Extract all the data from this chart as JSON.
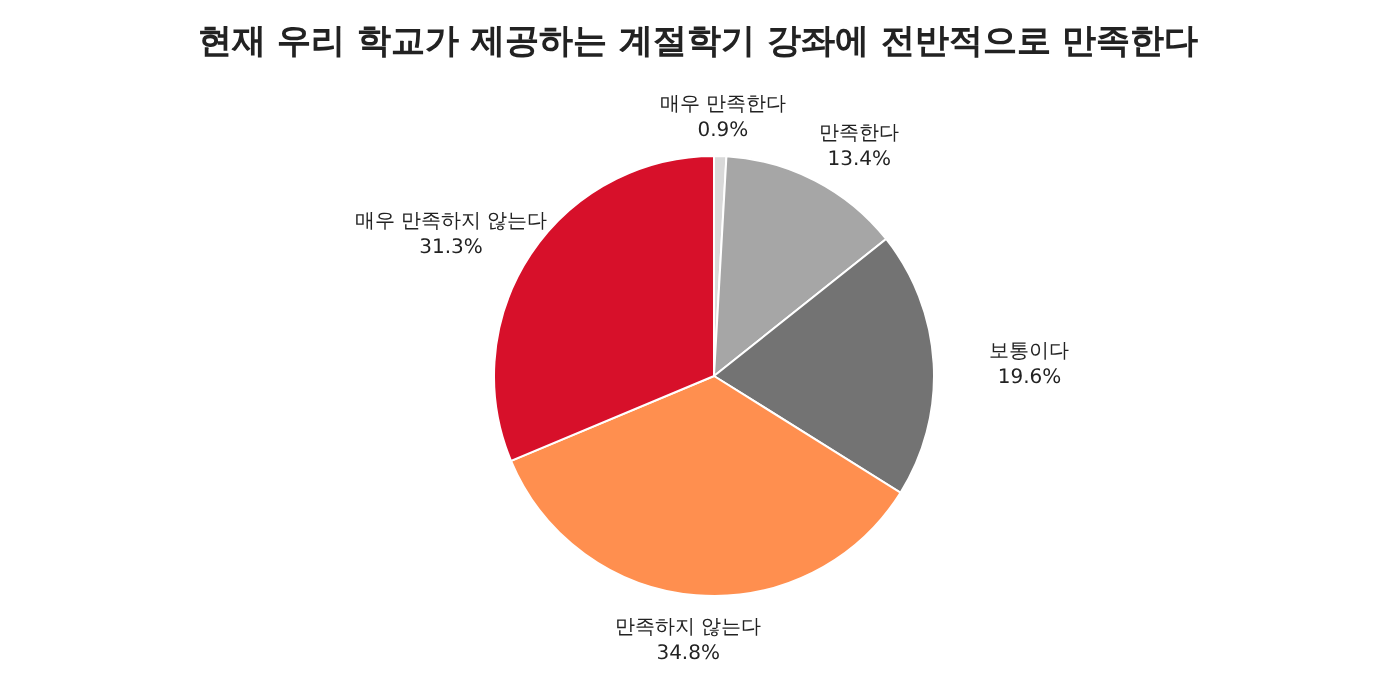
{
  "chart_data": {
    "type": "pie",
    "title": "현재 우리 학교가 제공하는 계절학기 강좌에 전반적으로 만족한다",
    "categories": [
      "매우 만족한다",
      "만족한다",
      "보통이다",
      "만족하지 않는다",
      "매우 만족하지 않는다"
    ],
    "values": [
      0.9,
      13.4,
      19.6,
      34.8,
      31.3
    ],
    "colors": [
      "#d9d9d9",
      "#a6a6a6",
      "#737373",
      "#ff8f4f",
      "#d7102a"
    ],
    "value_labels": [
      "0.9%",
      "13.4%",
      "19.6%",
      "34.8%",
      "31.3%"
    ]
  }
}
